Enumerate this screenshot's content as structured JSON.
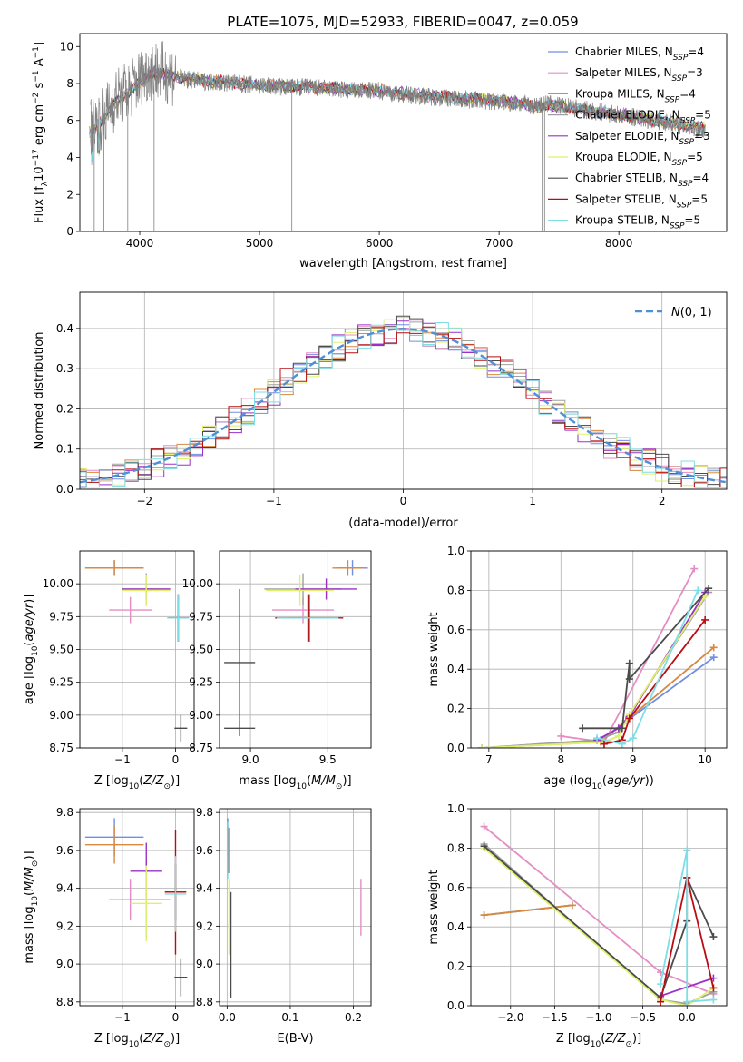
{
  "figure_title": "PLATE=1075, MJD=52933, FIBERID=0047, z=0.059",
  "colors": {
    "Chabrier MILES": "#6f8fe0",
    "Salpeter MILES": "#e48ec5",
    "Kroupa MILES": "#d8883f",
    "Chabrier ELODIE": "#a0a0a0",
    "Salpeter ELODIE": "#9b30c7",
    "Kroupa ELODIE": "#dff06a",
    "Chabrier STELIB": "#4b4b4b",
    "Salpeter STELIB": "#b80e13",
    "Kroupa STELIB": "#7fdde6"
  },
  "chart_data": [
    {
      "id": "spectrum",
      "type": "line",
      "title": "PLATE=1075, MJD=52933, FIBERID=0047, z=0.059",
      "xlabel": "wavelength [Angstrom, rest frame]",
      "ylabel": "Flux [f_λ 10^-17 erg cm^-2 s^-1 A^-1]",
      "xlim": [
        3500,
        8900
      ],
      "ylim": [
        0,
        10.7
      ],
      "xticks": [
        4000,
        5000,
        6000,
        7000,
        8000
      ],
      "yticks": [
        0,
        2,
        4,
        6,
        8,
        10
      ],
      "grid": false,
      "legend_position": "right",
      "legend": [
        {
          "label": "Chabrier MILES, N",
          "sub": "SSP",
          "tail": "=4"
        },
        {
          "label": "Salpeter MILES, N",
          "sub": "SSP",
          "tail": "=3"
        },
        {
          "label": "Kroupa MILES, N",
          "sub": "SSP",
          "tail": "=4"
        },
        {
          "label": "Chabrier ELODIE, N",
          "sub": "SSP",
          "tail": "=5"
        },
        {
          "label": "Salpeter ELODIE, N",
          "sub": "SSP",
          "tail": "=3"
        },
        {
          "label": "Kroupa ELODIE, N",
          "sub": "SSP",
          "tail": "=5"
        },
        {
          "label": "Chabrier STELIB, N",
          "sub": "SSP",
          "tail": "=4"
        },
        {
          "label": "Salpeter STELIB, N",
          "sub": "SSP",
          "tail": "=5"
        },
        {
          "label": "Kroupa STELIB, N",
          "sub": "SSP",
          "tail": "=5"
        }
      ],
      "data_envelope": {
        "x": [
          3600,
          3700,
          3800,
          3900,
          4000,
          4100,
          4200,
          4300,
          4400,
          4600,
          4800,
          5000,
          5200,
          5400,
          5600,
          5800,
          6000,
          6200,
          6400,
          6600,
          6800,
          7000,
          7200,
          7300,
          7400,
          7600,
          7800,
          8000,
          8200,
          8400,
          8600,
          8700
        ],
        "y": [
          5.6,
          6.2,
          7.2,
          7.6,
          8.2,
          8.8,
          8.6,
          8.4,
          8.2,
          8.1,
          8.0,
          7.9,
          7.8,
          7.8,
          7.7,
          7.6,
          7.6,
          7.4,
          7.3,
          7.2,
          7.1,
          7.0,
          6.9,
          6.8,
          6.9,
          6.7,
          6.5,
          6.3,
          6.1,
          5.9,
          5.6,
          5.5
        ]
      },
      "model_envelope": {
        "x": [
          3600,
          3700,
          3800,
          3900,
          4000,
          4100,
          4200,
          4300,
          4400,
          4600,
          4800,
          5000,
          5200,
          5400,
          5600,
          5800,
          6000,
          6200,
          6400,
          6600,
          6800,
          7000,
          7200,
          7300,
          7400,
          7600,
          7800,
          8000,
          8200,
          8400,
          8600,
          8700
        ],
        "y": [
          5.4,
          6.1,
          7.0,
          7.5,
          8.0,
          8.6,
          8.5,
          8.35,
          8.25,
          8.15,
          8.05,
          7.95,
          7.85,
          7.8,
          7.75,
          7.65,
          7.6,
          7.45,
          7.35,
          7.25,
          7.15,
          7.05,
          6.9,
          6.7,
          6.85,
          6.7,
          6.5,
          6.3,
          6.1,
          5.95,
          5.7,
          5.6
        ]
      }
    },
    {
      "id": "residuals",
      "type": "line",
      "xlabel": "(data-model)/error",
      "ylabel": "Normed distribution",
      "xlim": [
        -2.5,
        2.5
      ],
      "ylim": [
        0,
        0.49
      ],
      "xticks": [
        -2,
        -1,
        0,
        1,
        2
      ],
      "yticks": [
        0.0,
        0.1,
        0.2,
        0.3,
        0.4
      ],
      "grid": true,
      "legend_position": "upper right",
      "legend": [
        {
          "label": "N(0,1)"
        }
      ],
      "bin_width": 0.1,
      "gaussian": {
        "mean": 0,
        "sigma": 1
      }
    },
    {
      "id": "age-vs-Z",
      "type": "scatter",
      "xlabel": "Z [log10(Z/Z☉)]",
      "ylabel": "age [log10(age/yr)]",
      "xlim": [
        -1.8,
        0.35
      ],
      "ylim": [
        8.75,
        10.25
      ],
      "xticks": [
        -1,
        0
      ],
      "yticks": [
        8.75,
        9.0,
        9.25,
        9.5,
        9.75,
        10.0
      ],
      "grid": true,
      "series": [
        {
          "name": "Chabrier MILES",
          "x": -1.15,
          "xerr": 0.55,
          "y": 10.12,
          "yerr": 0.06
        },
        {
          "name": "Salpeter MILES",
          "x": -0.85,
          "xerr": 0.4,
          "y": 9.8,
          "yerr": 0.1
        },
        {
          "name": "Kroupa MILES",
          "x": -1.15,
          "xerr": 0.55,
          "y": 10.12,
          "yerr": 0.06
        },
        {
          "name": "Chabrier ELODIE",
          "x": -0.55,
          "xerr": 0.45,
          "y": 9.96,
          "yerr": 0.12
        },
        {
          "name": "Salpeter ELODIE",
          "x": -0.55,
          "xerr": 0.45,
          "y": 9.96,
          "yerr": 0.08
        },
        {
          "name": "Kroupa ELODIE",
          "x": -0.55,
          "xerr": 0.45,
          "y": 9.95,
          "yerr": 0.12
        },
        {
          "name": "Chabrier STELIB",
          "x": 0.05,
          "xerr": 0.2,
          "y": 9.74,
          "yerr": 0.18
        },
        {
          "name": "Salpeter STELIB",
          "x": 0.05,
          "xerr": 0.2,
          "y": 9.74,
          "yerr": 0.18
        },
        {
          "name": "Kroupa STELIB",
          "x": 0.05,
          "xerr": 0.2,
          "y": 9.74,
          "yerr": 0.18
        },
        {
          "name": "Chabrier STELIB (2)",
          "x": 0.1,
          "xerr": 0.12,
          "y": 8.9,
          "yerr": 0.1
        }
      ]
    },
    {
      "id": "age-vs-mass",
      "type": "scatter",
      "xlabel": "mass [log10(M/M☉)]",
      "ylabel": "",
      "xlim": [
        8.8,
        9.78
      ],
      "ylim": [
        8.75,
        10.25
      ],
      "xticks": [
        9.0,
        9.5
      ],
      "yticks": [
        8.75,
        9.0,
        9.25,
        9.5,
        9.75,
        10.0
      ],
      "grid": true,
      "series": [
        {
          "name": "Chabrier MILES",
          "x": 9.66,
          "xerr": 0.1,
          "y": 10.12,
          "yerr": 0.06
        },
        {
          "name": "Salpeter MILES",
          "x": 9.34,
          "xerr": 0.2,
          "y": 9.8,
          "yerr": 0.1
        },
        {
          "name": "Kroupa MILES",
          "x": 9.63,
          "xerr": 0.1,
          "y": 10.12,
          "yerr": 0.06
        },
        {
          "name": "Chabrier ELODIE",
          "x": 9.34,
          "xerr": 0.25,
          "y": 9.96,
          "yerr": 0.12
        },
        {
          "name": "Salpeter ELODIE",
          "x": 9.49,
          "xerr": 0.2,
          "y": 9.96,
          "yerr": 0.08
        },
        {
          "name": "Kroupa ELODIE",
          "x": 9.32,
          "xerr": 0.22,
          "y": 9.95,
          "yerr": 0.12
        },
        {
          "name": "Chabrier STELIB",
          "x": 9.38,
          "xerr": 0.15,
          "y": 9.74,
          "yerr": 0.18
        },
        {
          "name": "Salpeter STELIB",
          "x": 9.38,
          "xerr": 0.22,
          "y": 9.74,
          "yerr": 0.18
        },
        {
          "name": "Kroupa STELIB",
          "x": 9.37,
          "xerr": 0.2,
          "y": 9.74,
          "yerr": 0.18
        },
        {
          "name": "Chabrier STELIB (2)",
          "x": 8.93,
          "xerr": 0.1,
          "y": 8.9,
          "yerr": 0.06
        },
        {
          "name": "Chabrier STELIB (3)",
          "x": 8.93,
          "xerr": 0.1,
          "y": 9.4,
          "yerr": 0.56
        }
      ]
    },
    {
      "id": "massweight-vs-age",
      "type": "line",
      "xlabel": "age (log10(age/yr))",
      "ylabel": "mass weight",
      "xlim": [
        6.75,
        10.3
      ],
      "ylim": [
        0,
        1.0
      ],
      "xticks": [
        7,
        8,
        9,
        10
      ],
      "yticks": [
        0.0,
        0.2,
        0.4,
        0.6,
        0.8,
        1.0
      ],
      "grid": true,
      "series": [
        {
          "name": "Chabrier MILES",
          "x": [
            6.9,
            8.55,
            10.12
          ],
          "y": [
            0.0,
            0.04,
            0.46
          ]
        },
        {
          "name": "Salpeter MILES",
          "x": [
            8.0,
            8.6,
            9.85
          ],
          "y": [
            0.06,
            0.03,
            0.91
          ]
        },
        {
          "name": "Kroupa MILES",
          "x": [
            6.9,
            8.55,
            10.12
          ],
          "y": [
            0.0,
            0.03,
            0.51
          ]
        },
        {
          "name": "Chabrier ELODIE",
          "x": [
            6.9,
            8.5,
            8.8,
            8.9,
            10.05
          ],
          "y": [
            0.0,
            0.04,
            0.08,
            0.14,
            0.79
          ]
        },
        {
          "name": "Salpeter ELODIE",
          "x": [
            8.5,
            8.8,
            8.95,
            10.0
          ],
          "y": [
            0.04,
            0.1,
            0.16,
            0.79
          ]
        },
        {
          "name": "Kroupa ELODIE",
          "x": [
            6.9,
            8.6,
            8.8,
            8.95,
            10.0
          ],
          "y": [
            0.0,
            0.03,
            0.06,
            0.17,
            0.77
          ]
        },
        {
          "name": "Chabrier STELIB",
          "x": [
            8.3,
            8.85,
            8.95,
            8.95,
            10.05
          ],
          "y": [
            0.1,
            0.1,
            0.43,
            0.35,
            0.81
          ]
        },
        {
          "name": "Salpeter STELIB",
          "x": [
            8.6,
            8.85,
            8.95,
            10.0
          ],
          "y": [
            0.02,
            0.04,
            0.15,
            0.65
          ]
        },
        {
          "name": "Kroupa STELIB",
          "x": [
            8.5,
            8.85,
            9.0,
            9.9
          ],
          "y": [
            0.05,
            0.02,
            0.05,
            0.8
          ]
        }
      ]
    },
    {
      "id": "mass-vs-Z",
      "type": "scatter",
      "xlabel": "Z [log10(Z/Z☉)]",
      "ylabel": "mass [log10(M/M☉)]",
      "xlim": [
        -1.8,
        0.35
      ],
      "ylim": [
        8.78,
        9.82
      ],
      "xticks": [
        -1,
        0
      ],
      "yticks": [
        8.8,
        9.0,
        9.2,
        9.4,
        9.6,
        9.8
      ],
      "grid": true,
      "series": [
        {
          "name": "Chabrier MILES",
          "x": -1.15,
          "xerr": 0.55,
          "y": 9.67,
          "yerr": 0.1
        },
        {
          "name": "Salpeter MILES",
          "x": -0.85,
          "xerr": 0.4,
          "y": 9.34,
          "yerr": 0.11
        },
        {
          "name": "Kroupa MILES",
          "x": -1.15,
          "xerr": 0.55,
          "y": 9.63,
          "yerr": 0.1
        },
        {
          "name": "Chabrier ELODIE",
          "x": -0.55,
          "xerr": 0.45,
          "y": 9.34,
          "yerr": 0.2
        },
        {
          "name": "Salpeter ELODIE",
          "x": -0.55,
          "xerr": 0.3,
          "y": 9.49,
          "yerr": 0.15
        },
        {
          "name": "Kroupa ELODIE",
          "x": -0.55,
          "xerr": 0.3,
          "y": 9.32,
          "yerr": 0.2
        },
        {
          "name": "Chabrier STELIB",
          "x": 0.0,
          "xerr": 0.2,
          "y": 9.38,
          "yerr": 0.15
        },
        {
          "name": "Salpeter STELIB",
          "x": 0.0,
          "xerr": 0.2,
          "y": 9.38,
          "yerr": 0.33
        },
        {
          "name": "Kroupa STELIB",
          "x": 0.0,
          "xerr": 0.2,
          "y": 9.37,
          "yerr": 0.2
        },
        {
          "name": "Chabrier STELIB (2)",
          "x": 0.1,
          "xerr": 0.12,
          "y": 8.93,
          "yerr": 0.1
        }
      ]
    },
    {
      "id": "mass-vs-ebv",
      "type": "scatter",
      "xlabel": "E(B-V)",
      "ylabel": "",
      "xlim": [
        -0.012,
        0.228
      ],
      "ylim": [
        8.78,
        9.82
      ],
      "xticks": [
        0.0,
        0.1,
        0.2
      ],
      "yticks": [
        8.8,
        9.0,
        9.2,
        9.4,
        9.6,
        9.8
      ],
      "grid": true,
      "series": [
        {
          "name": "Chabrier MILES",
          "x": 0.001,
          "y": 9.67,
          "yerr": 0.1
        },
        {
          "name": "Kroupa MILES",
          "x": 0.001,
          "y": 9.63,
          "yerr": 0.1
        },
        {
          "name": "Salpeter STELIB",
          "x": 0.002,
          "y": 9.6,
          "yerr": 0.12
        },
        {
          "name": "Kroupa STELIB",
          "x": 0.001,
          "y": 9.6,
          "yerr": 0.15
        },
        {
          "name": "Kroupa ELODIE",
          "x": 0.003,
          "y": 9.25,
          "yerr": 0.2
        },
        {
          "name": "Chabrier STELIB",
          "x": 0.006,
          "y": 9.1,
          "yerr": 0.28
        },
        {
          "name": "Salpeter MILES",
          "x": 0.212,
          "y": 9.3,
          "yerr": 0.15
        }
      ]
    },
    {
      "id": "massweight-vs-Z",
      "type": "line",
      "xlabel": "Z [log10(Z/Z☉)]",
      "ylabel": "mass weight",
      "xlim": [
        -2.45,
        0.45
      ],
      "ylim": [
        0,
        1.0
      ],
      "xticks": [
        -2.0,
        -1.5,
        -1.0,
        -0.5,
        0.0
      ],
      "yticks": [
        0.0,
        0.2,
        0.4,
        0.6,
        0.8,
        1.0
      ],
      "grid": true,
      "series": [
        {
          "name": "Chabrier MILES",
          "x": [
            -2.3,
            -1.3
          ],
          "y": [
            0.46,
            0.51
          ]
        },
        {
          "name": "Kroupa MILES",
          "x": [
            -2.3,
            -1.3
          ],
          "y": [
            0.46,
            0.51
          ]
        },
        {
          "name": "Salpeter MILES",
          "x": [
            -2.3,
            -0.3,
            0.3
          ],
          "y": [
            0.91,
            0.17,
            0.06
          ]
        },
        {
          "name": "Chabrier ELODIE",
          "x": [
            -2.3,
            -0.3,
            0.0,
            0.3
          ],
          "y": [
            0.82,
            0.03,
            0.01,
            0.07
          ]
        },
        {
          "name": "Salpeter ELODIE",
          "x": [
            -0.3,
            0.3
          ],
          "y": [
            0.05,
            0.14
          ]
        },
        {
          "name": "Kroupa ELODIE",
          "x": [
            -2.3,
            -0.3,
            0.0,
            0.3
          ],
          "y": [
            0.8,
            0.03,
            0.0,
            0.09
          ]
        },
        {
          "name": "Chabrier STELIB",
          "x": [
            -2.3,
            -0.3,
            0.0,
            0.0,
            0.3
          ],
          "y": [
            0.81,
            0.04,
            0.43,
            0.65,
            0.35
          ]
        },
        {
          "name": "Salpeter STELIB",
          "x": [
            -0.3,
            0.0,
            0.3
          ],
          "y": [
            0.02,
            0.65,
            0.09
          ]
        },
        {
          "name": "Kroupa STELIB",
          "x": [
            -0.3,
            0.0,
            0.0,
            0.3
          ],
          "y": [
            0.11,
            0.79,
            0.02,
            0.03
          ]
        }
      ]
    }
  ]
}
